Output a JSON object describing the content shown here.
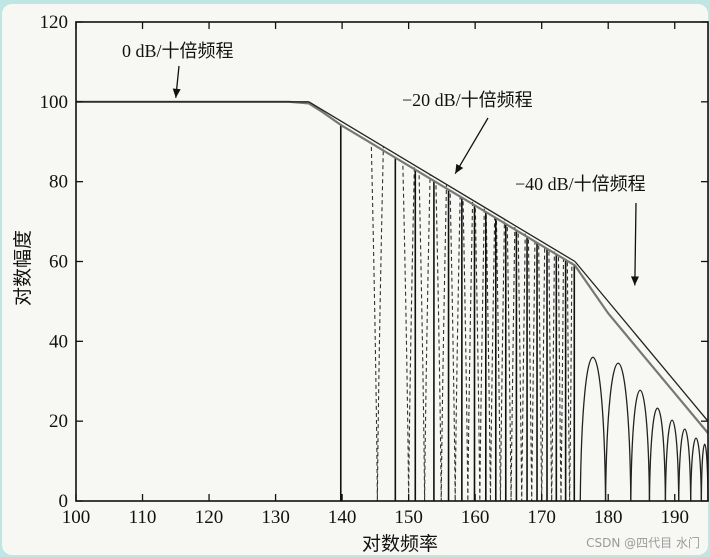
{
  "watermark": "CSDN @四代目 水门",
  "chart_data": {
    "type": "line",
    "title": "",
    "xlabel": "对数频率",
    "ylabel": "对数幅度",
    "xlim": [
      100,
      195
    ],
    "ylim": [
      0,
      120
    ],
    "xticks": [
      100,
      110,
      120,
      130,
      140,
      150,
      160,
      170,
      180,
      190
    ],
    "yticks": [
      0,
      20,
      40,
      60,
      80,
      100,
      120
    ],
    "grid": false,
    "asymptotes": [
      {
        "points": [
          [
            100,
            100
          ],
          [
            135,
            100
          ]
        ]
      },
      {
        "points": [
          [
            135,
            100
          ],
          [
            175,
            60
          ]
        ]
      },
      {
        "points": [
          [
            175,
            60
          ],
          [
            195,
            20
          ]
        ]
      }
    ],
    "envelope": {
      "points": [
        [
          100,
          100
        ],
        [
          125,
          100
        ],
        [
          132,
          100
        ],
        [
          135,
          99.6
        ],
        [
          137,
          97.5
        ],
        [
          140,
          94
        ],
        [
          145,
          89
        ],
        [
          150,
          84
        ],
        [
          155,
          79
        ],
        [
          160,
          74
        ],
        [
          165,
          69
        ],
        [
          170,
          64
        ],
        [
          175,
          59
        ],
        [
          180,
          47
        ],
        [
          185,
          37
        ],
        [
          190,
          27
        ],
        [
          195,
          17
        ]
      ]
    },
    "solid_notches_x": [
      139.8,
      148,
      151,
      153.8,
      156,
      158,
      159.9,
      161.6,
      163.1,
      164.6,
      166.2,
      167.8,
      169.3,
      170.8,
      172.2,
      173.6,
      174.9
    ],
    "dashed_notches_x": [
      145.3,
      150,
      152.4,
      154.9,
      157,
      158.9,
      160.7,
      162.3,
      163.8,
      165.4,
      167,
      168.5,
      170,
      171.5,
      172.9,
      174.2
    ],
    "lobes": [
      {
        "x_start": 175.8,
        "x_end": 179.6,
        "peak": 46
      },
      {
        "x_start": 179.6,
        "x_end": 183.4,
        "peak": 44
      },
      {
        "x_start": 183.4,
        "x_end": 186.2,
        "peak": 35
      },
      {
        "x_start": 186.2,
        "x_end": 188.6,
        "peak": 29
      },
      {
        "x_start": 188.6,
        "x_end": 190.6,
        "peak": 25
      },
      {
        "x_start": 190.6,
        "x_end": 192.4,
        "peak": 22
      },
      {
        "x_start": 192.4,
        "x_end": 194,
        "peak": 19
      },
      {
        "x_start": 194,
        "x_end": 195,
        "peak": 17
      }
    ],
    "annotations": [
      {
        "text": "0 dB/十倍频程",
        "arrow_to": [
          115,
          100
        ]
      },
      {
        "text": "−20 dB/十倍频程",
        "arrow_to": [
          157,
          81
        ]
      },
      {
        "text": "−40 dB/十倍频程",
        "arrow_to": [
          184,
          53
        ]
      }
    ]
  }
}
